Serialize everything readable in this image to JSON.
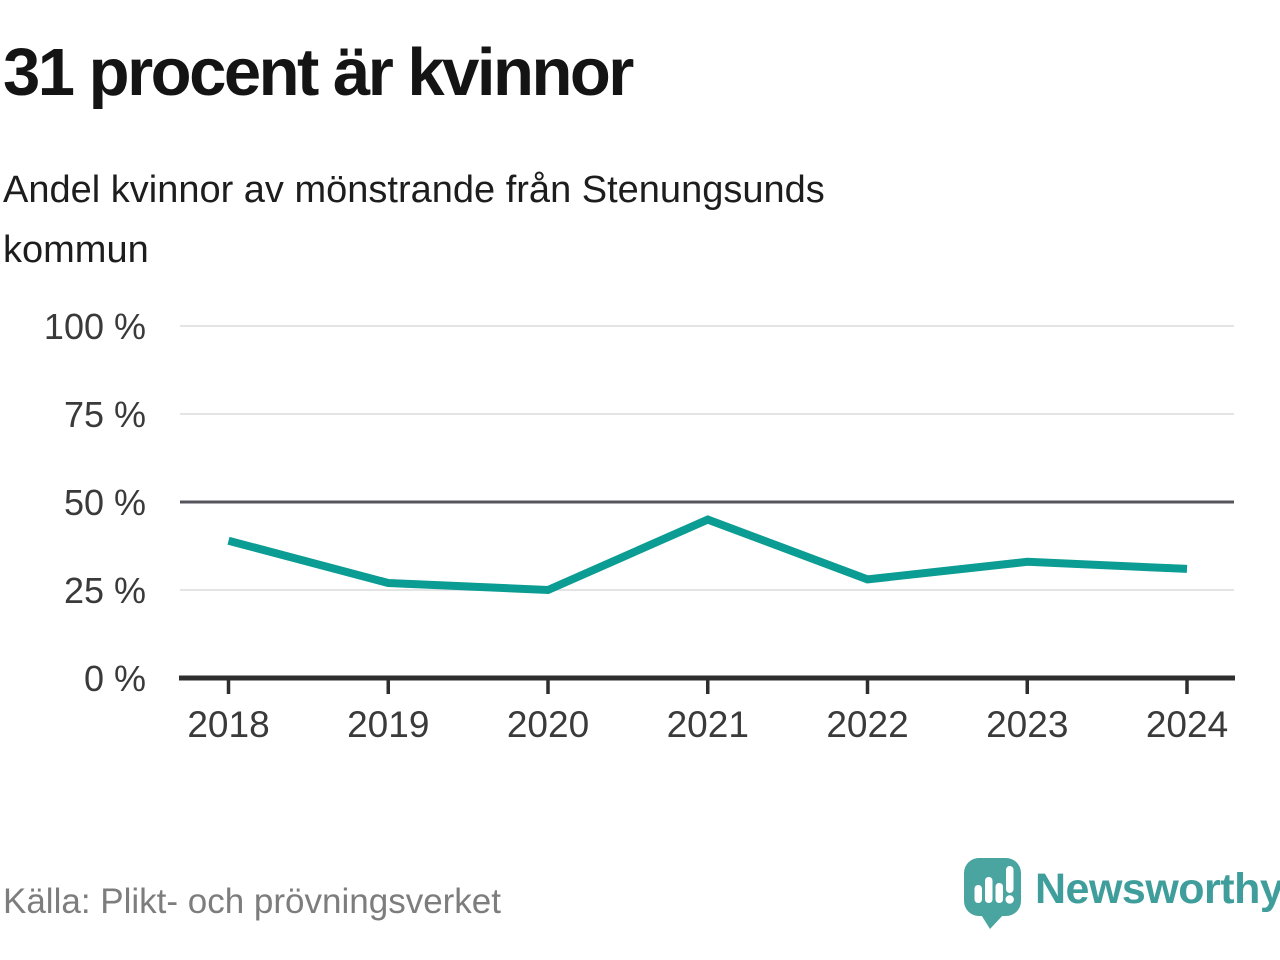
{
  "header": {
    "title": "31 procent är kvinnor",
    "subtitle": "Andel kvinnor av mönstrande från Stenungsunds kommun",
    "subtitle_lines": [
      "Andel kvinnor av mönstrande från Stenungsunds",
      "kommun"
    ]
  },
  "chart_data": {
    "type": "line",
    "title": "31 procent är kvinnor",
    "subtitle": "Andel kvinnor av mönstrande från Stenungsunds kommun",
    "x": [
      2018,
      2019,
      2020,
      2021,
      2022,
      2023,
      2024
    ],
    "values": [
      39,
      27,
      25,
      45,
      28,
      33,
      31
    ],
    "unit": "%",
    "ylim": [
      0,
      100
    ],
    "yticks": [
      0,
      25,
      50,
      75,
      100
    ],
    "ytick_suffix": " %",
    "grid": true,
    "legend": "none",
    "emphasized_gridline": 50,
    "colors": {
      "line": "#0b9c93",
      "grid_light": "#e4e4e4",
      "grid_emphasis": "#54555d",
      "axis": "#2e2e2e",
      "tick_text": "#3a3a3a"
    }
  },
  "footer": {
    "source": "Källa: Plikt- och prövningsverket",
    "logo_text": "Newsworthy",
    "logo_color": "#4aa5a0",
    "logo_text_color": "#3f9e9b"
  }
}
